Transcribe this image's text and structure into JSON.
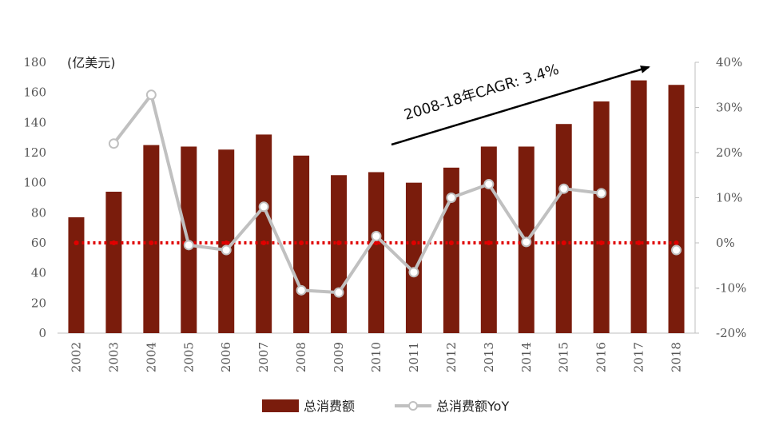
{
  "chart_data": {
    "type": "bar",
    "categories": [
      "2002",
      "2003",
      "2004",
      "2005",
      "2006",
      "2007",
      "2008",
      "2009",
      "2010",
      "2011",
      "2012",
      "2013",
      "2014",
      "2015",
      "2016",
      "2017",
      "2018"
    ],
    "y_unit_label": "(亿美元)",
    "ylim": [
      0,
      180
    ],
    "y_ticks": [
      "0",
      "20",
      "40",
      "60",
      "80",
      "100",
      "120",
      "140",
      "160",
      "180"
    ],
    "y2lim": [
      -20,
      40
    ],
    "y2_ticks": [
      "-20%",
      "-10%",
      "0%",
      "10%",
      "20%",
      "30%",
      "40%"
    ],
    "series": [
      {
        "name": "总消费额",
        "type": "bar",
        "axis": "left",
        "color": "#7a1c0c",
        "values": [
          77,
          94,
          125,
          124,
          122,
          132,
          118,
          105,
          107,
          100,
          110,
          124,
          124,
          139,
          154,
          168,
          165
        ]
      },
      {
        "name": "总消费额YoY",
        "type": "line",
        "axis": "right",
        "color": "#c0c0c0",
        "values": [
          null,
          22,
          32.8,
          -0.5,
          -1.6,
          8,
          -10.5,
          -11,
          1.5,
          -6.5,
          10,
          13,
          0.2,
          12,
          11,
          null,
          -1.6
        ]
      }
    ],
    "reference_line": {
      "axis": "right",
      "value": 0,
      "color": "#e00000",
      "style": "dotted"
    },
    "annotation": {
      "text": "2008-18年CAGR: 3.4%",
      "arrow": true
    },
    "legend": {
      "position": "bottom"
    },
    "grid": false
  }
}
